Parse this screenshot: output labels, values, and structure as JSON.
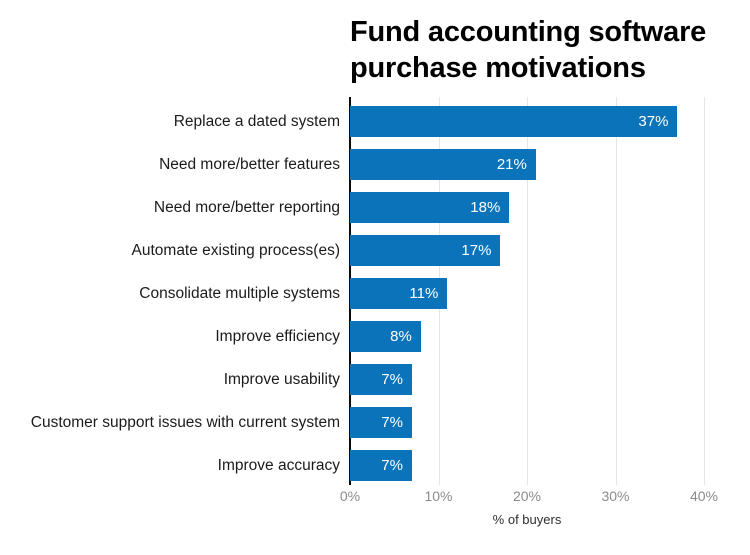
{
  "page": {
    "background": "#ffffff"
  },
  "chart_data": {
    "type": "bar",
    "orientation": "horizontal",
    "title": "Fund accounting software purchase motivations",
    "categories": [
      "Replace a dated system",
      "Need more/better features",
      "Need more/better reporting",
      "Automate existing process(es)",
      "Consolidate multiple systems",
      "Improve efficiency",
      "Improve usability",
      "Customer support issues with current system",
      "Improve accuracy"
    ],
    "values": [
      37,
      21,
      18,
      17,
      11,
      8,
      7,
      7,
      7
    ],
    "value_labels": [
      "37%",
      "21%",
      "18%",
      "17%",
      "11%",
      "8%",
      "7%",
      "7%",
      "7%"
    ],
    "xlabel": "% of buyers",
    "x_ticks": [
      "0%",
      "10%",
      "20%",
      "30%",
      "40%"
    ],
    "xlim": [
      0,
      40
    ],
    "grid": true,
    "legend": false,
    "colors": {
      "bar": "#0b73b9",
      "value_label": "#ffffff",
      "gridline": "#e4e4e4",
      "axis_line": "#0a0a0a",
      "tick_label": "#8b8b8b",
      "axis_title": "#2f2f2f",
      "title": "#000000",
      "category_label": "#1b1b1b"
    }
  }
}
